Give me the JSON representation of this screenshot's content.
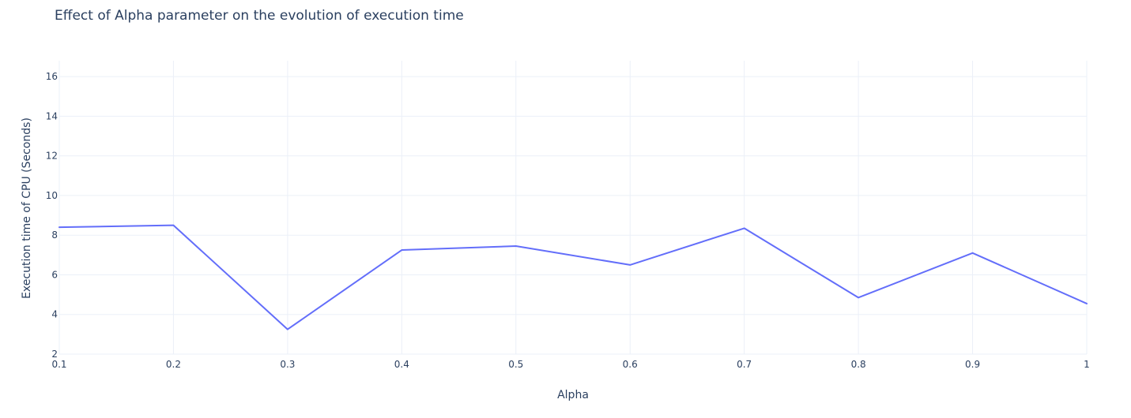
{
  "chart_data": {
    "type": "line",
    "title": "Effect of Alpha parameter on the evolution of execution time",
    "xlabel": "Alpha",
    "ylabel": "Execution time of CPU (Seconds)",
    "x": [
      0.1,
      0.2,
      0.3,
      0.4,
      0.5,
      0.6,
      0.7,
      0.8,
      0.9,
      1.0
    ],
    "series": [
      {
        "values": [
          8.4,
          8.5,
          3.25,
          7.25,
          7.45,
          6.5,
          8.35,
          4.85,
          7.1,
          4.55
        ],
        "color": "#636efa"
      }
    ],
    "xlim": [
      0.1,
      1.0
    ],
    "ylim": [
      2,
      16.8
    ],
    "xticks": [
      0.1,
      0.2,
      0.3,
      0.4,
      0.5,
      0.6,
      0.7,
      0.8,
      0.9,
      1
    ],
    "xtick_labels": [
      "0.1",
      "0.2",
      "0.3",
      "0.4",
      "0.5",
      "0.6",
      "0.7",
      "0.8",
      "0.9",
      "1"
    ],
    "yticks": [
      2,
      4,
      6,
      8,
      10,
      12,
      14,
      16
    ],
    "ytick_labels": [
      "2",
      "4",
      "6",
      "8",
      "10",
      "12",
      "14",
      "16"
    ],
    "grid": true,
    "gridColor": "#ebf0f8",
    "legend": "none"
  }
}
